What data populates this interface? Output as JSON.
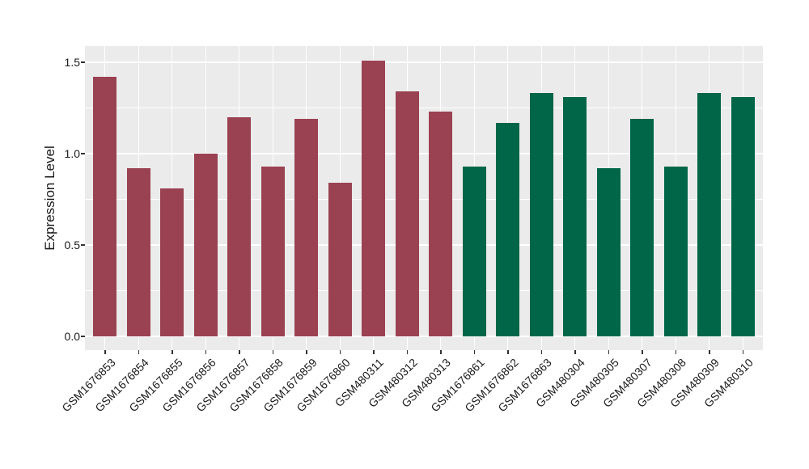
{
  "figure": {
    "background": "#FFFFFF"
  },
  "chart_data": {
    "type": "bar",
    "title": "",
    "xlabel": "",
    "ylabel": "Expression Level",
    "ylim": [
      0,
      1.59
    ],
    "yticks": [
      0.0,
      0.5,
      1.0,
      1.5
    ],
    "ytick_labels": [
      "0.0",
      "0.5",
      "1.0",
      "1.5"
    ],
    "minor_yticks": [
      0.25,
      0.75,
      1.25
    ],
    "grid": "on",
    "legend_position": "none",
    "panel_background": "#EBEBEB",
    "gridline_color": "#FFFFFF",
    "tick_mark_color": "#333333",
    "axis_text_color": "#1A1A1A",
    "group_colors": {
      "red": "#9A4252",
      "green": "#006647"
    },
    "categories": [
      "GSM1676853",
      "GSM1676854",
      "GSM1676855",
      "GSM1676856",
      "GSM1676857",
      "GSM1676858",
      "GSM1676859",
      "GSM1676860",
      "GSM480311",
      "GSM480312",
      "GSM480313",
      "GSM1676861",
      "GSM1676862",
      "GSM1676863",
      "GSM480304",
      "GSM480305",
      "GSM480307",
      "GSM480308",
      "GSM480309",
      "GSM480310"
    ],
    "values": [
      1.42,
      0.92,
      0.81,
      1.0,
      1.2,
      0.93,
      1.19,
      0.84,
      1.51,
      1.34,
      1.23,
      0.93,
      1.17,
      1.33,
      1.31,
      0.92,
      1.19,
      0.93,
      1.33,
      1.31
    ],
    "bar_groups": [
      "red",
      "red",
      "red",
      "red",
      "red",
      "red",
      "red",
      "red",
      "red",
      "red",
      "red",
      "green",
      "green",
      "green",
      "green",
      "green",
      "green",
      "green",
      "green",
      "green"
    ]
  }
}
